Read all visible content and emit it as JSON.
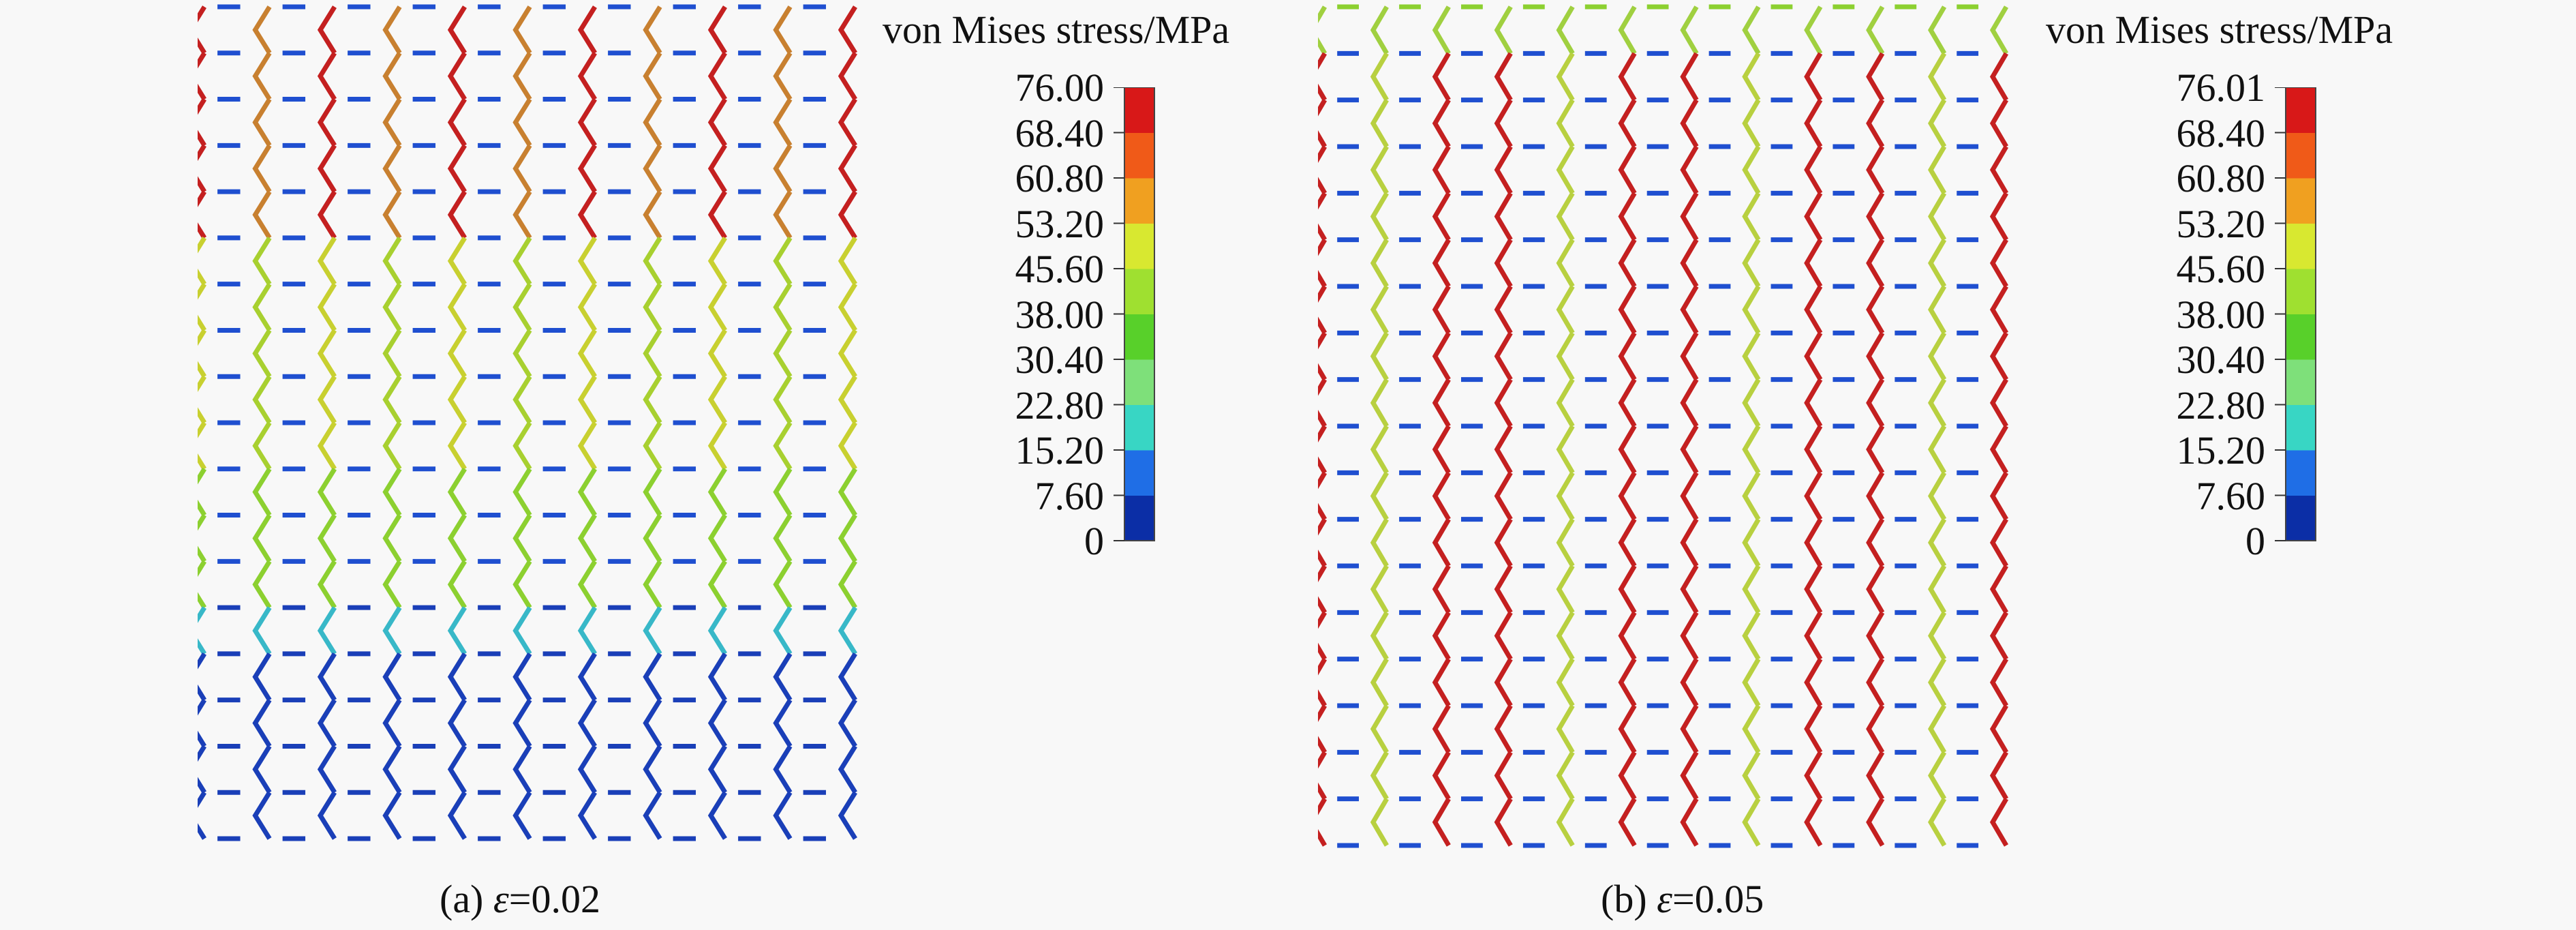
{
  "legend_title": "von Mises stress/MPa",
  "panels": [
    {
      "id": "a",
      "caption_prefix": "(a) ",
      "caption_symbol": "ε",
      "caption_value": "=0.02",
      "colorbar_labels": [
        "76.00",
        "68.40",
        "60.80",
        "53.20",
        "45.60",
        "38.00",
        "30.40",
        "22.80",
        "15.20",
        "7.60",
        "0"
      ]
    },
    {
      "id": "b",
      "caption_prefix": "(b) ",
      "caption_symbol": "ε",
      "caption_value": "=0.05",
      "colorbar_labels": [
        "76.01",
        "68.40",
        "60.80",
        "53.20",
        "45.60",
        "38.00",
        "30.40",
        "22.80",
        "15.20",
        "7.60",
        "0"
      ]
    }
  ],
  "colors": {
    "scale": [
      "#0b2ea6",
      "#1f6ee6",
      "#38d6c4",
      "#7ee07a",
      "#58d02a",
      "#9fe030",
      "#d8e830",
      "#f0a020",
      "#f05a18",
      "#d81818"
    ],
    "blue": "#1a3fb8",
    "red": "#c42020",
    "green": "#8cd030",
    "yellow": "#c8d030"
  }
}
